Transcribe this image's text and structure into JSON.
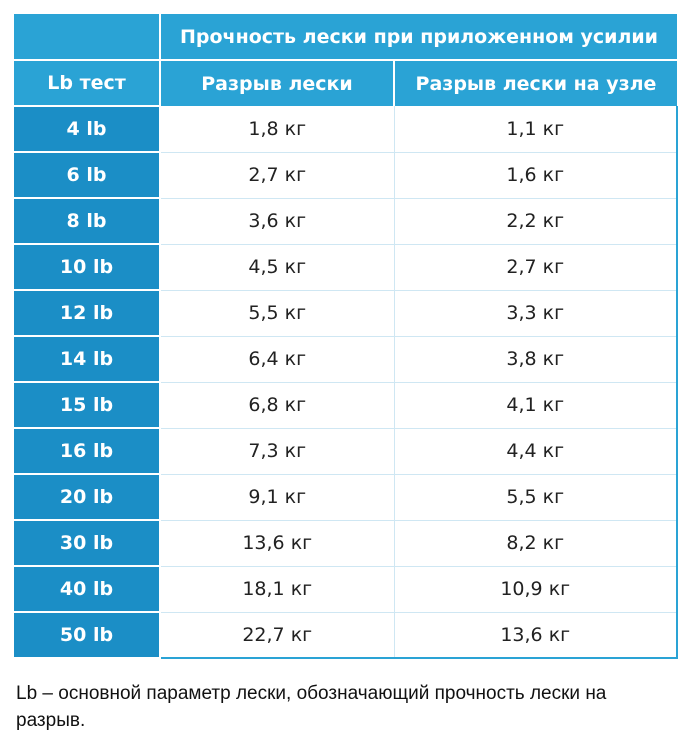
{
  "table": {
    "top_header": "Прочность лески при приложенном усилии",
    "col_lb": "Lb тест",
    "col_break": "Разрыв лески",
    "col_knot": "Разрыв лески на узле",
    "rows": [
      {
        "lb": "4 lb",
        "break": "1,8 кг",
        "knot": "1,1 кг"
      },
      {
        "lb": "6 lb",
        "break": "2,7 кг",
        "knot": "1,6 кг"
      },
      {
        "lb": "8 lb",
        "break": "3,6 кг",
        "knot": "2,2 кг"
      },
      {
        "lb": "10 lb",
        "break": "4,5 кг",
        "knot": "2,7 кг"
      },
      {
        "lb": "12 lb",
        "break": "5,5 кг",
        "knot": "3,3 кг"
      },
      {
        "lb": "14 lb",
        "break": "6,4 кг",
        "knot": "3,8 кг"
      },
      {
        "lb": "15 lb",
        "break": "6,8 кг",
        "knot": "4,1 кг"
      },
      {
        "lb": "16 lb",
        "break": "7,3 кг",
        "knot": "4,4 кг"
      },
      {
        "lb": "20 lb",
        "break": "9,1 кг",
        "knot": "5,5 кг"
      },
      {
        "lb": "30 lb",
        "break": "13,6 кг",
        "knot": "8,2 кг"
      },
      {
        "lb": "40 lb",
        "break": "18,1 кг",
        "knot": "10,9 кг"
      },
      {
        "lb": "50 lb",
        "break": "22,7 кг",
        "knot": "13,6 кг"
      }
    ]
  },
  "footnote": "Lb – основной параметр лески, обозначающий прочность лески на разрыв.",
  "colors": {
    "header_blue": "#2aa3d5",
    "row_header_blue": "#1b8ec6"
  }
}
